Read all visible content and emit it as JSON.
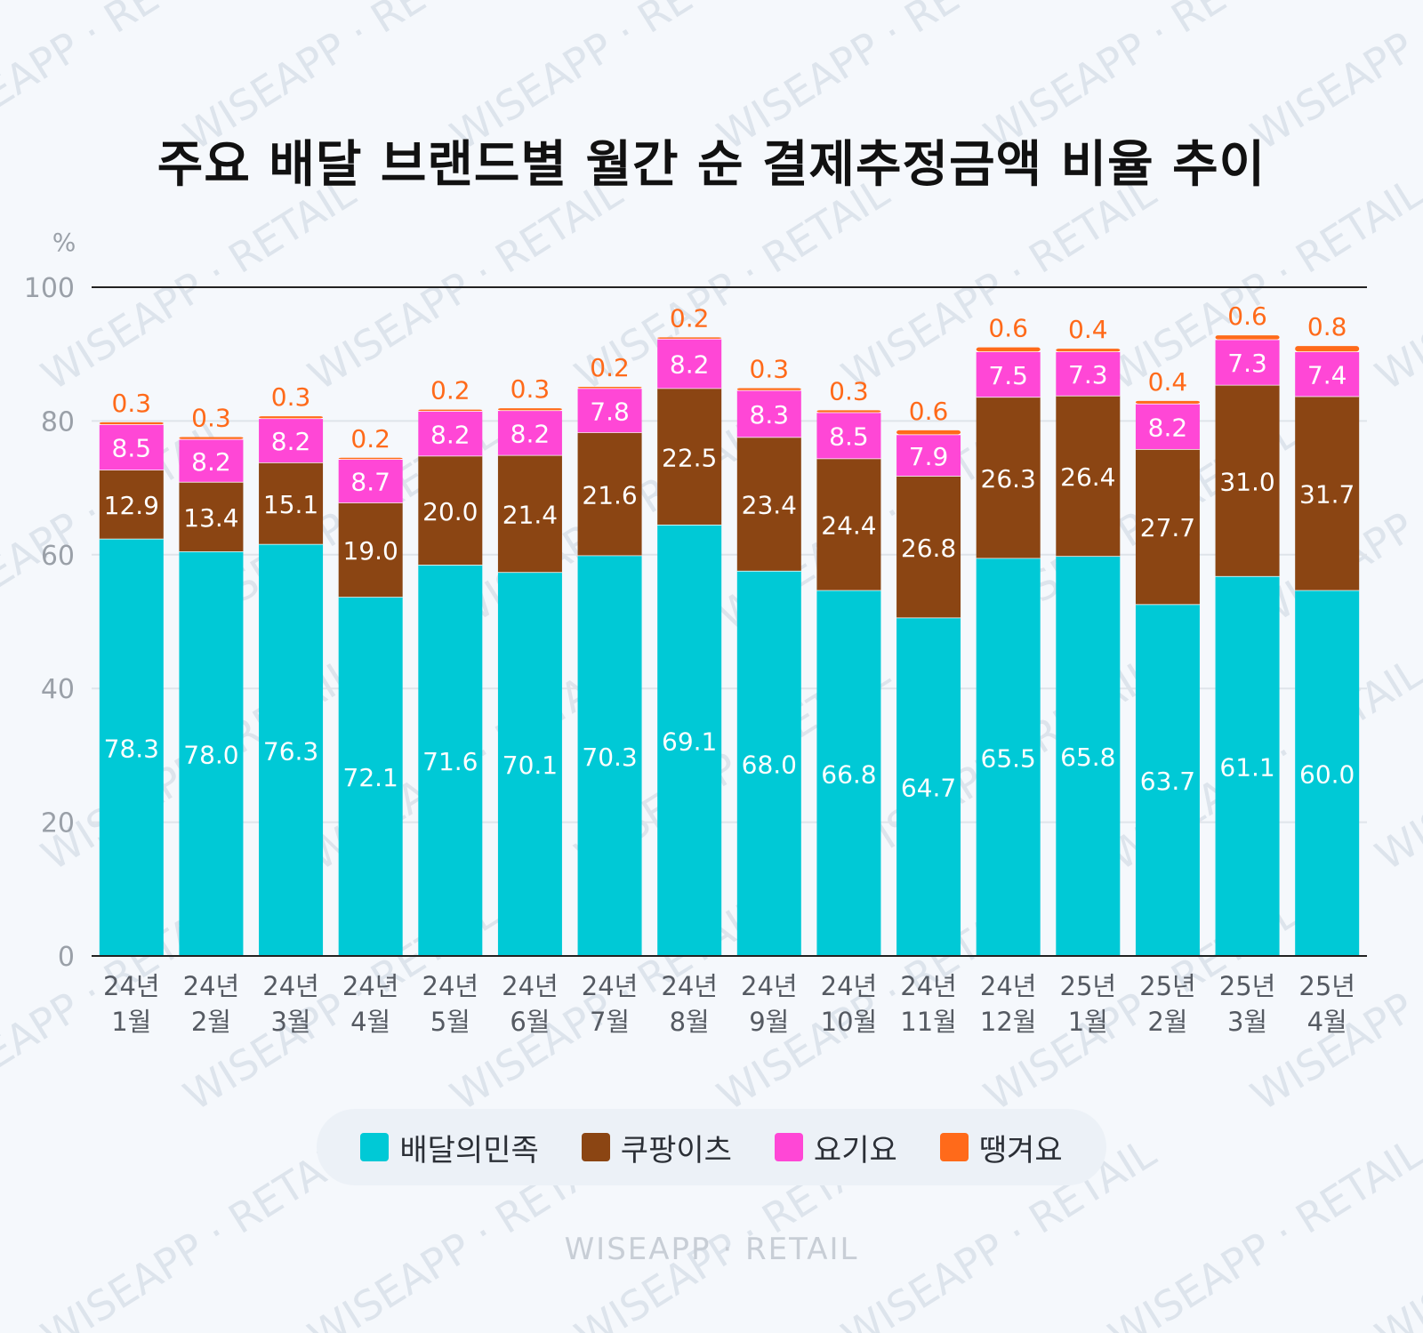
{
  "title": "주요 배달 브랜드별 월간 순 결제추정금액 비율 추이",
  "brand": "WISEAPP · RETAIL",
  "watermark": "WISEAPP · RETAIL",
  "chart_data": {
    "type": "bar",
    "stacked": true,
    "title": "주요 배달 브랜드별 월간 순 결제추정금액 비율 추이",
    "ylabel": "%",
    "ylim": [
      0,
      100
    ],
    "yticks": [
      0,
      20,
      40,
      60,
      80,
      100
    ],
    "grid": true,
    "legend_position": "bottom",
    "categories": [
      [
        "24년",
        "1월"
      ],
      [
        "24년",
        "2월"
      ],
      [
        "24년",
        "3월"
      ],
      [
        "24년",
        "4월"
      ],
      [
        "24년",
        "5월"
      ],
      [
        "24년",
        "6월"
      ],
      [
        "24년",
        "7월"
      ],
      [
        "24년",
        "8월"
      ],
      [
        "24년",
        "9월"
      ],
      [
        "24년",
        "10월"
      ],
      [
        "24년",
        "11월"
      ],
      [
        "24년",
        "12월"
      ],
      [
        "25년",
        "1월"
      ],
      [
        "25년",
        "2월"
      ],
      [
        "25년",
        "3월"
      ],
      [
        "25년",
        "4월"
      ]
    ],
    "series": [
      {
        "name": "배달의민족",
        "color": "#00c9d6",
        "label_color": "#ffffff",
        "values": [
          78.3,
          78.0,
          76.3,
          72.1,
          71.6,
          70.1,
          70.3,
          69.1,
          68.0,
          66.8,
          64.7,
          65.5,
          65.8,
          63.7,
          61.1,
          60.0
        ],
        "stack_heights": [
          62.4,
          60.5,
          61.6,
          53.7,
          58.5,
          57.4,
          59.9,
          64.5,
          57.6,
          54.7,
          50.6,
          59.5,
          59.8,
          52.6,
          56.8,
          54.7
        ]
      },
      {
        "name": "쿠팡이츠",
        "color": "#8b4513",
        "label_color": "#ffffff",
        "values": [
          12.9,
          13.4,
          15.1,
          19.0,
          20.0,
          21.4,
          21.6,
          22.5,
          23.4,
          24.4,
          26.8,
          26.3,
          26.4,
          27.7,
          31.0,
          31.7
        ],
        "stack_heights": [
          10.3,
          10.4,
          12.2,
          14.1,
          16.3,
          17.5,
          18.4,
          20.4,
          20.0,
          19.7,
          21.2,
          24.1,
          24.0,
          23.2,
          28.6,
          29.0
        ]
      },
      {
        "name": "요기요",
        "color": "#ff47d6",
        "label_color": "#ffffff",
        "values": [
          8.5,
          8.2,
          8.2,
          8.7,
          8.2,
          8.2,
          7.8,
          8.2,
          8.3,
          8.5,
          7.9,
          7.5,
          7.3,
          8.2,
          7.3,
          7.4
        ],
        "stack_heights": [
          6.8,
          6.4,
          6.6,
          6.5,
          6.7,
          6.7,
          6.6,
          7.4,
          7.0,
          6.9,
          6.2,
          6.8,
          6.6,
          6.8,
          6.8,
          6.7
        ]
      },
      {
        "name": "땡겨요",
        "color": "#ff6a1a",
        "label_color": "#ff6a1a",
        "values": [
          0.3,
          0.3,
          0.3,
          0.2,
          0.2,
          0.3,
          0.2,
          0.2,
          0.3,
          0.3,
          0.6,
          0.6,
          0.4,
          0.4,
          0.6,
          0.8
        ],
        "stack_heights": [
          0.3,
          0.3,
          0.3,
          0.2,
          0.2,
          0.3,
          0.2,
          0.2,
          0.3,
          0.3,
          0.6,
          0.6,
          0.4,
          0.4,
          0.6,
          0.8
        ]
      }
    ]
  }
}
